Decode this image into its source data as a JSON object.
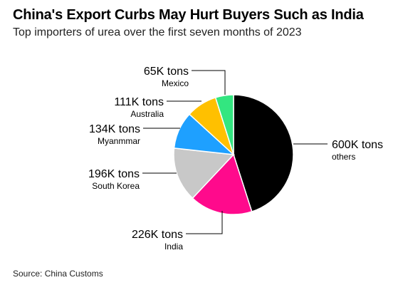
{
  "header": {
    "title": "China's Export Curbs May Hurt Buyers Such as India",
    "subtitle": "Top importers of urea over the first seven months of 2023"
  },
  "footer": {
    "source": "Source: China Customs"
  },
  "chart_data": {
    "type": "pie",
    "unit": "tons",
    "start": "top",
    "direction": "clockwise",
    "slices": [
      {
        "name": "others",
        "value": 600000,
        "value_label": "600K tons",
        "color": "#000000"
      },
      {
        "name": "India",
        "value": 226000,
        "value_label": "226K tons",
        "color": "#ff0a8c"
      },
      {
        "name": "South Korea",
        "value": 196000,
        "value_label": "196K tons",
        "color": "#c8c8c8"
      },
      {
        "name": "Myanmmar",
        "value": 134000,
        "value_label": "134K tons",
        "color": "#1ea0ff"
      },
      {
        "name": "Australia",
        "value": 111000,
        "value_label": "111K tons",
        "color": "#ffc000"
      },
      {
        "name": "Mexico",
        "value": 65000,
        "value_label": "65K tons",
        "color": "#33e680"
      }
    ]
  }
}
